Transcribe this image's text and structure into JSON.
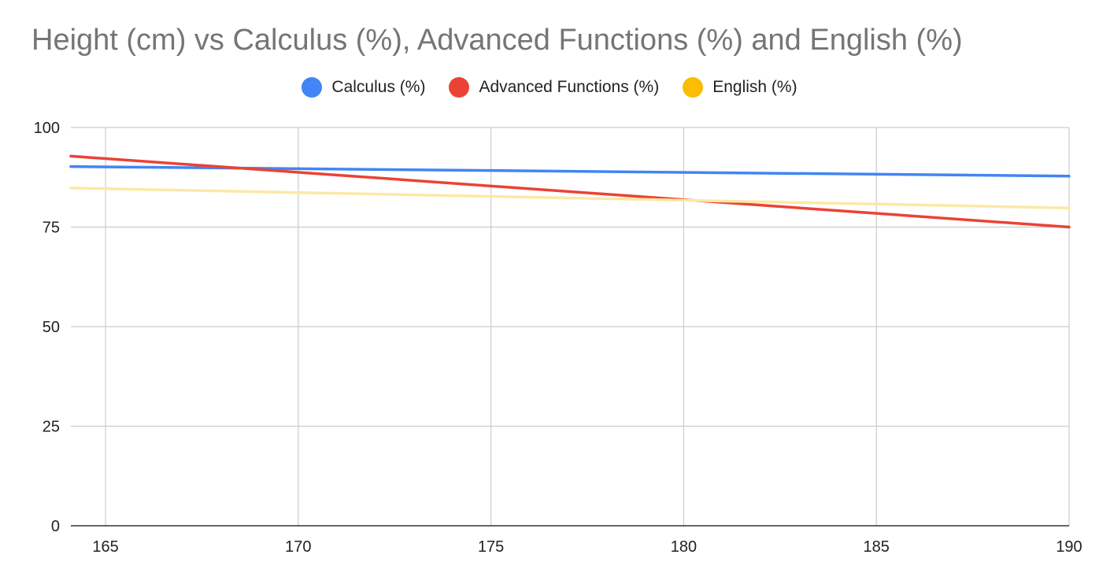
{
  "chart_data": {
    "type": "line",
    "title": "Height (cm) vs Calculus (%), Advanced Functions (%) and English (%)",
    "xlabel": "",
    "ylabel": "",
    "xlim": [
      164.1,
      190
    ],
    "ylim": [
      0,
      100
    ],
    "x_ticks": [
      "165",
      "170",
      "175",
      "180",
      "185",
      "190"
    ],
    "y_ticks": [
      "0",
      "25",
      "50",
      "75",
      "100"
    ],
    "grid": true,
    "legend_position": "top",
    "series": [
      {
        "name": "Calculus (%)",
        "color": "#4285f4",
        "x": [
          164.1,
          190
        ],
        "y": [
          90.2,
          87.8
        ]
      },
      {
        "name": "Advanced Functions (%)",
        "color": "#ea4335",
        "x": [
          164.1,
          190
        ],
        "y": [
          92.8,
          75.0
        ]
      },
      {
        "name": "English (%)",
        "color": "#fce8a6",
        "legend_color": "#fbbc04",
        "x": [
          164.1,
          190
        ],
        "y": [
          84.8,
          79.8
        ]
      }
    ]
  }
}
